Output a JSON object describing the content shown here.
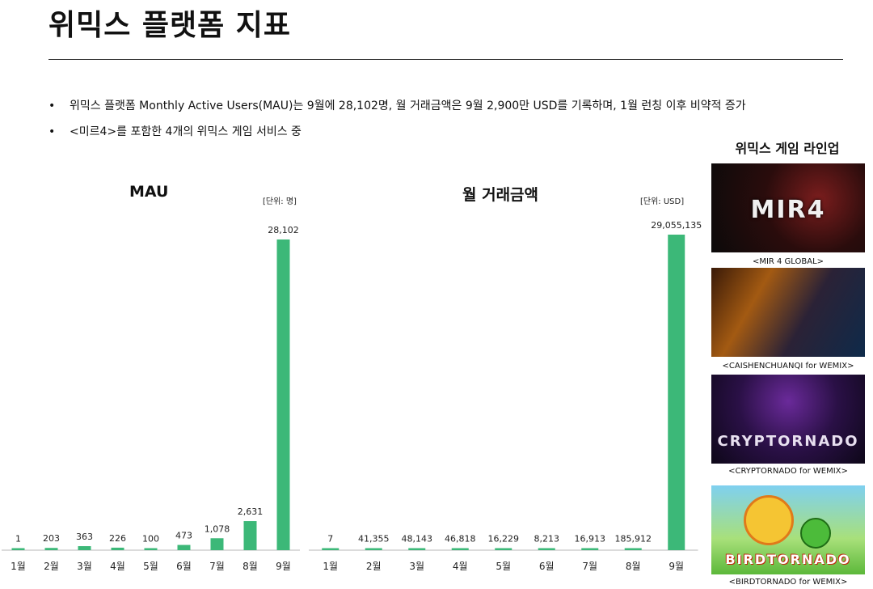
{
  "title": "위믹스 플랫폼 지표",
  "bullets": [
    "위믹스 플랫폼 Monthly Active Users(MAU)는 9월에 28,102명, 월 거래금액은 9월 2,900만 USD를 기록하며, 1월 런칭 이후 비약적 증가",
    "<미르4>를 포함한 4개의 위믹스 게임 서비스 중"
  ],
  "colors": {
    "bar": "#3cb878",
    "text": "#111111"
  },
  "chart_data": [
    {
      "type": "bar",
      "title": "MAU",
      "unit": "[단위: 명]",
      "categories": [
        "1월",
        "2월",
        "3월",
        "4월",
        "5월",
        "6월",
        "7월",
        "8월",
        "9월"
      ],
      "values": [
        1,
        203,
        363,
        226,
        100,
        473,
        1078,
        2631,
        28102
      ],
      "value_labels": [
        "1",
        "203",
        "363",
        "226",
        "100",
        "473",
        "1,078",
        "2,631",
        "28,102"
      ]
    },
    {
      "type": "bar",
      "title": "월 거래금액",
      "unit": "[단위: USD]",
      "categories": [
        "1월",
        "2월",
        "3월",
        "4월",
        "5월",
        "6월",
        "7월",
        "8월",
        "9월"
      ],
      "values": [
        7,
        41355,
        48143,
        46818,
        16229,
        8213,
        16913,
        185912,
        29055135
      ],
      "value_labels": [
        "7",
        "41,355",
        "48,143",
        "46,818",
        "16,229",
        "8,213",
        "16,913",
        "185,912",
        "29,055,135"
      ]
    }
  ],
  "lineup": {
    "title": "위믹스 게임 라인업",
    "games": [
      {
        "caption": "<MIR 4 GLOBAL>",
        "logo": "MIR4",
        "icon": "mir4-banner-icon"
      },
      {
        "caption": "<CAISHENCHUANQI for WEMIX>",
        "logo": "",
        "icon": "caishenchuanqi-banner-icon"
      },
      {
        "caption": "<CRYPTORNADO for WEMIX>",
        "logo": "CRYPTORNADO",
        "icon": "cryptornado-banner-icon"
      },
      {
        "caption": "<BIRDTORNADO for WEMIX>",
        "logo": "BIRDTORNADO",
        "icon": "birdtornado-banner-icon"
      }
    ]
  }
}
